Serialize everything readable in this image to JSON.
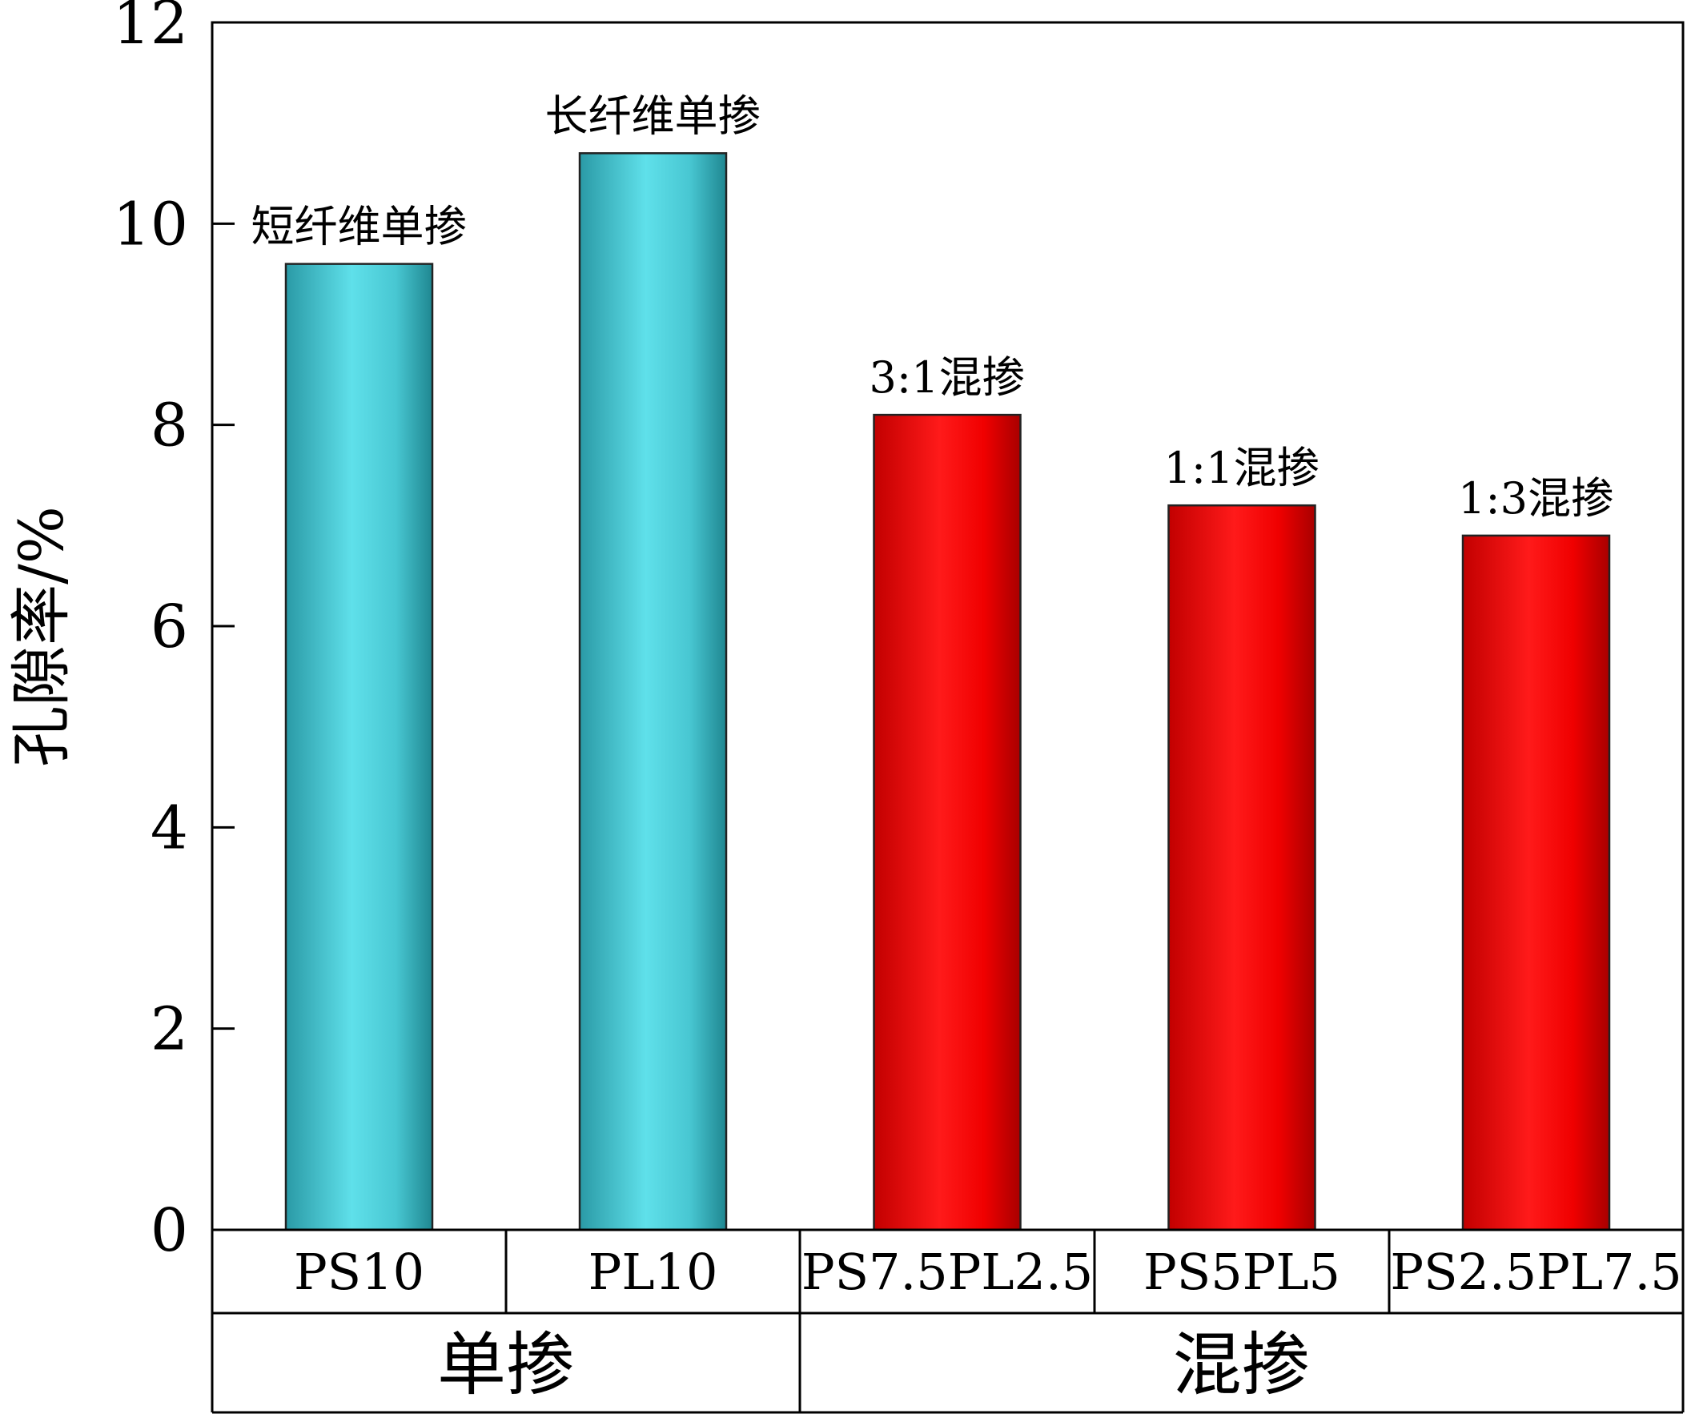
{
  "chart_data": {
    "type": "bar",
    "ylabel": "孔隙率/%",
    "ylim": [
      0,
      12
    ],
    "yticks": [
      0,
      2,
      4,
      6,
      8,
      10,
      12
    ],
    "categories": [
      "PS10",
      "PL10",
      "PS7.5PL2.5",
      "PS5PL5",
      "PS2.5PL7.5"
    ],
    "values": [
      9.6,
      10.7,
      8.1,
      7.2,
      6.9
    ],
    "bar_labels": [
      "短纤维单掺",
      "长纤维单掺",
      "3:1混掺",
      "1:1混掺",
      "1:3混掺"
    ],
    "groups": [
      {
        "label": "单掺",
        "categories": [
          "PS10",
          "PL10"
        ]
      },
      {
        "label": "混掺",
        "categories": [
          "PS7.5PL2.5",
          "PS5PL5",
          "PS2.5PL7.5"
        ]
      }
    ],
    "colors": {
      "单掺": "#3fc8d3",
      "混掺": "#ee0000"
    },
    "grid": false
  }
}
